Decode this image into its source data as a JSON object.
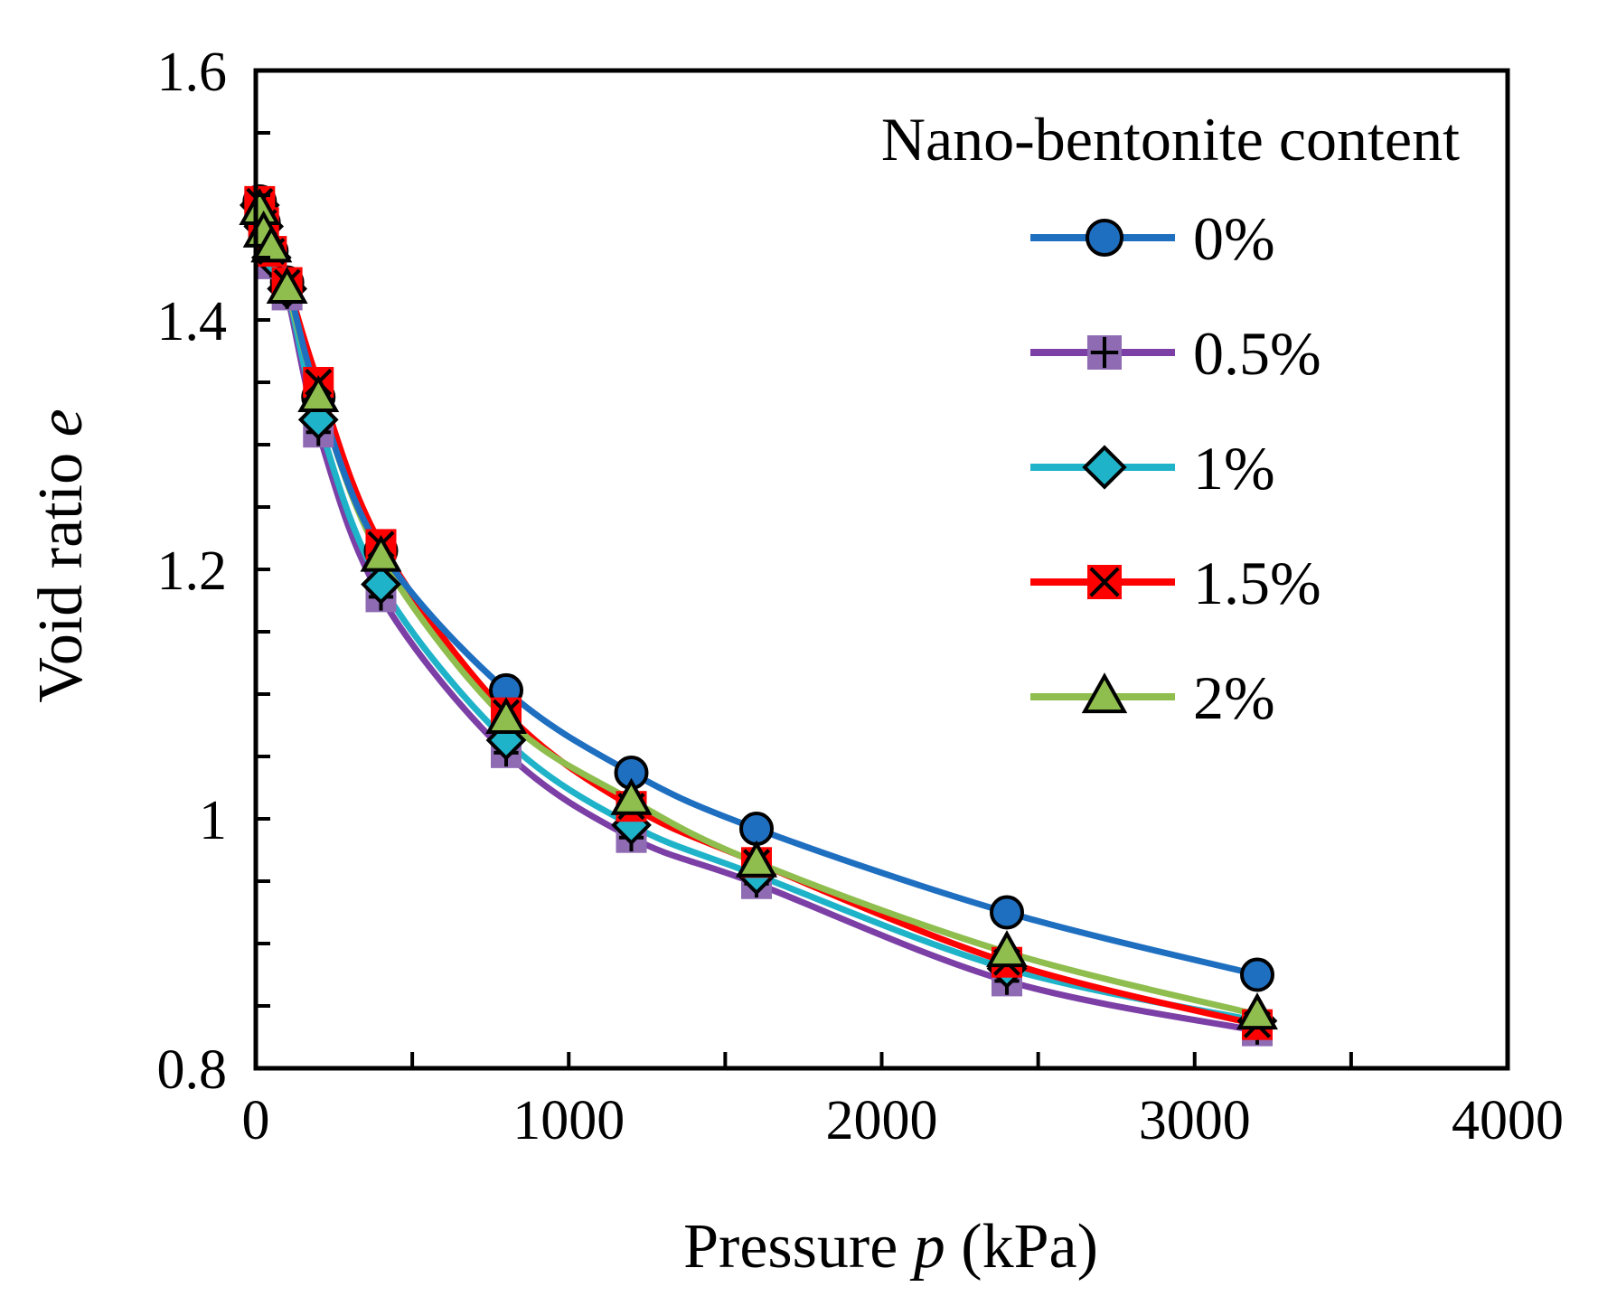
{
  "chart_data": {
    "type": "line",
    "xlabel_main": "Pressure ",
    "xlabel_var": "p",
    "xlabel_unit": " (kPa)",
    "ylabel_main": "Void ratio ",
    "ylabel_var": "e",
    "xlim": [
      0,
      4000
    ],
    "ylim": [
      0.8,
      1.6
    ],
    "xticks": [
      0,
      1000,
      2000,
      3000,
      4000
    ],
    "xtick_labels": [
      "0",
      "1000",
      "2000",
      "3000",
      "4000"
    ],
    "yticks": [
      0.8,
      1.0,
      1.2,
      1.4,
      1.6
    ],
    "ytick_labels": [
      "0.8",
      "1",
      "1.2",
      "1.4",
      "1.6"
    ],
    "x_minor_step": 500,
    "y_minor_step": 0.1,
    "grid": false,
    "legend_title": "Nano-bentonite content",
    "legend_position": "top-right",
    "x": [
      12.5,
      25,
      50,
      100,
      200,
      400,
      800,
      1200,
      1600,
      2400,
      3200
    ],
    "series": [
      {
        "name": "0%",
        "color": "#1f6fc1",
        "marker": "circle",
        "marker_fill": "#1f6fc1",
        "values": [
          1.495,
          1.478,
          1.455,
          1.43,
          1.338,
          1.215,
          1.103,
          1.037,
          0.992,
          0.925,
          0.875
        ]
      },
      {
        "name": "0.5%",
        "color": "#7b3fa6",
        "marker": "plus-square",
        "marker_fill": "#8e6bb3",
        "values": [
          1.49,
          1.472,
          1.445,
          1.42,
          1.31,
          1.178,
          1.053,
          0.985,
          0.948,
          0.87,
          0.83
        ]
      },
      {
        "name": "1%",
        "color": "#1fb3c9",
        "marker": "diamond",
        "marker_fill": "#1fb3c9",
        "values": [
          1.492,
          1.475,
          1.45,
          1.425,
          1.32,
          1.188,
          1.063,
          0.995,
          0.955,
          0.88,
          0.838
        ]
      },
      {
        "name": "1.5%",
        "color": "#ff0000",
        "marker": "x-square",
        "marker_fill": "#ff0000",
        "values": [
          1.495,
          1.478,
          1.455,
          1.43,
          1.35,
          1.22,
          1.085,
          1.01,
          0.965,
          0.885,
          0.835
        ]
      },
      {
        "name": "2%",
        "color": "#8fbd4e",
        "marker": "triangle",
        "marker_fill": "#8fbd4e",
        "values": [
          1.488,
          1.47,
          1.458,
          1.425,
          1.338,
          1.21,
          1.08,
          1.015,
          0.965,
          0.893,
          0.843
        ]
      }
    ]
  }
}
